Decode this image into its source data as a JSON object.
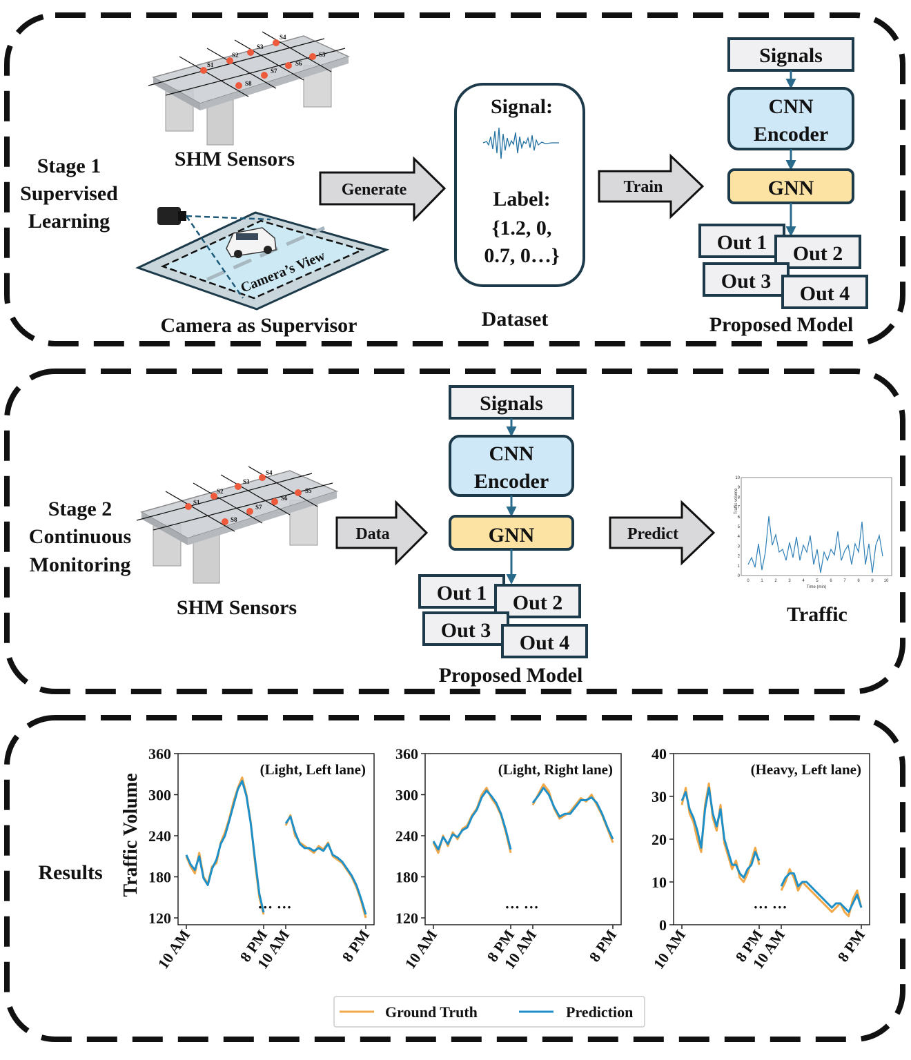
{
  "stage1": {
    "title_line1": "Stage 1",
    "title_line2": "Supervised",
    "title_line3": "Learning",
    "shm_label": "SHM Sensors",
    "camera_label": "Camera as Supervisor",
    "camera_view_label": "Camera’s View",
    "generate_label": "Generate",
    "train_label": "Train",
    "dataset": {
      "signal_label": "Signal:",
      "label_line1": "Label:",
      "label_line2": "{1.2, 0,",
      "label_line3": "0.7, 0…}",
      "caption": "Dataset"
    },
    "model_caption": "Proposed Model"
  },
  "stage2": {
    "title_line1": "Stage 2",
    "title_line2": "Continuous",
    "title_line3": "Monitoring",
    "shm_label": "SHM Sensors",
    "data_label": "Data",
    "predict_label": "Predict",
    "model_caption": "Proposed Model",
    "traffic_caption": "Traffic",
    "mini_chart": {
      "ylabel": "Traffic volume",
      "xlabel": "Time (min)",
      "yticks": [
        "0",
        "1",
        "2",
        "3",
        "4",
        "5",
        "6",
        "7",
        "8",
        "9",
        "10"
      ],
      "xticks": [
        "0",
        "1",
        "2",
        "3",
        "4",
        "5",
        "6",
        "7",
        "8",
        "9",
        "10"
      ]
    }
  },
  "model": {
    "signals": "Signals",
    "cnn_line1": "CNN",
    "cnn_line2": "Encoder",
    "gnn": "GNN",
    "outputs": [
      "Out 1",
      "Out 2",
      "Out 3",
      "Out 4"
    ]
  },
  "sensors": [
    "S1",
    "S2",
    "S3",
    "S4",
    "S5",
    "S6",
    "S7",
    "S8"
  ],
  "results": {
    "label": "Results",
    "ylabel": "Traffic Volume",
    "ellipsis": "··· ···",
    "legend": {
      "gt": "Ground Truth",
      "pred": "Prediction"
    },
    "colors": {
      "gt": "#f0a848",
      "pred": "#1f8fc8"
    }
  },
  "chart_data": [
    {
      "type": "line",
      "title": "(Light, Left lane)",
      "ylim": [
        110,
        360
      ],
      "yticks": [
        "120",
        "180",
        "240",
        "300",
        "360"
      ],
      "xticks": [
        "10 AM",
        "8 PM",
        "10 AM",
        "8 PM"
      ],
      "series": [
        {
          "name": "Ground Truth",
          "values": [
            [
              210,
              195,
              185,
              215,
              180,
              170,
              195,
              200,
              230,
              245,
              265,
              290,
              310,
              325,
              300,
              260,
              200,
              150,
              125
            ],
            [
              255,
              270,
              240,
              230,
              225,
              220,
              215,
              225,
              220,
              230,
              210,
              205,
              200,
              190,
              180,
              165,
              145,
              120
            ]
          ]
        },
        {
          "name": "Prediction",
          "values": [
            [
              212,
              198,
              190,
              210,
              178,
              168,
              192,
              205,
              228,
              240,
              262,
              285,
              308,
              320,
              298,
              258,
              205,
              155,
              128
            ],
            [
              258,
              268,
              245,
              228,
              222,
              222,
              218,
              222,
              218,
              228,
              212,
              208,
              202,
              192,
              182,
              168,
              148,
              125
            ]
          ]
        }
      ]
    },
    {
      "type": "line",
      "title": "(Light, Right lane)",
      "ylim": [
        110,
        360
      ],
      "yticks": [
        "120",
        "180",
        "240",
        "300",
        "360"
      ],
      "xticks": [
        "10 AM",
        "8 PM",
        "10 AM",
        "8 PM"
      ],
      "series": [
        {
          "name": "Ground Truth",
          "values": [
            [
              230,
              215,
              240,
              225,
              245,
              235,
              250,
              255,
              270,
              280,
              300,
              310,
              295,
              285,
              270,
              245,
              215
            ],
            [
              285,
              300,
              315,
              305,
              280,
              265,
              270,
              275,
              285,
              295,
              290,
              300,
              285,
              270,
              250,
              230
            ]
          ]
        },
        {
          "name": "Prediction",
          "values": [
            [
              232,
              220,
              238,
              228,
              242,
              238,
              248,
              252,
              268,
              278,
              296,
              306,
              298,
              288,
              272,
              248,
              220
            ],
            [
              288,
              298,
              310,
              300,
              282,
              268,
              272,
              272,
              282,
              292,
              292,
              296,
              288,
              272,
              252,
              235
            ]
          ]
        }
      ]
    },
    {
      "type": "line",
      "title": "(Heavy, Left lane)",
      "ylim": [
        0,
        40
      ],
      "yticks": [
        "0",
        "10",
        "20",
        "30",
        "40"
      ],
      "xticks": [
        "10 AM",
        "8 PM",
        "10 AM",
        "8 PM"
      ],
      "series": [
        {
          "name": "Ground Truth",
          "values": [
            [
              28,
              32,
              26,
              24,
              20,
              17,
              28,
              33,
              25,
              22,
              28,
              19,
              16,
              13,
              15,
              11,
              10,
              12,
              15,
              18,
              14
            ],
            [
              8,
              10,
              13,
              11,
              8,
              10,
              9,
              8,
              7,
              6,
              5,
              4,
              3,
              4,
              5,
              3,
              2,
              6,
              8,
              4
            ]
          ]
        },
        {
          "name": "Prediction",
          "values": [
            [
              29,
              31,
              27,
              25,
              22,
              18,
              27,
              32,
              26,
              23,
              27,
              20,
              17,
              14,
              14,
              12,
              11,
              13,
              14,
              17,
              15
            ],
            [
              9,
              11,
              12,
              12,
              9,
              10,
              10,
              9,
              8,
              7,
              6,
              5,
              4,
              5,
              5,
              4,
              3,
              5,
              7,
              4
            ]
          ]
        }
      ]
    }
  ]
}
